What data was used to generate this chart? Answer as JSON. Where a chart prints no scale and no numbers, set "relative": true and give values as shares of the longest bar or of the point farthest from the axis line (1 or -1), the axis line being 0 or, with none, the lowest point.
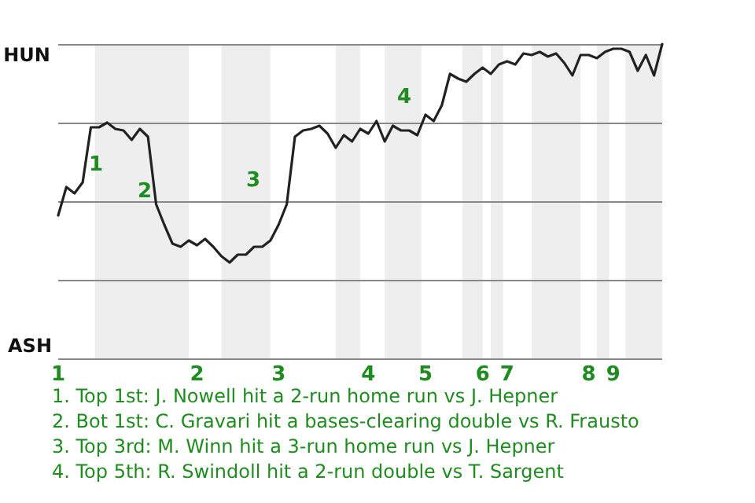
{
  "chart_data": {
    "type": "line",
    "relative": true,
    "categories": [
      "1",
      null,
      null,
      null,
      null,
      null,
      null,
      null,
      null,
      null,
      null,
      null,
      null,
      null,
      null,
      null,
      null,
      "2",
      null,
      null,
      null,
      null,
      null,
      null,
      null,
      null,
      null,
      "3",
      null,
      null,
      null,
      null,
      null,
      null,
      null,
      null,
      null,
      null,
      "4",
      null,
      null,
      null,
      null,
      null,
      null,
      "5",
      null,
      null,
      null,
      null,
      null,
      null,
      "6",
      null,
      null,
      "7",
      null,
      null,
      null,
      null,
      null,
      null,
      null,
      null,
      null,
      "8",
      null,
      null,
      "9",
      null,
      null,
      null,
      null,
      null,
      null
    ],
    "series": [
      {
        "color": "#222222",
        "values": [
          0.455,
          0.545,
          0.525,
          0.56,
          0.735,
          0.735,
          0.75,
          0.73,
          0.725,
          0.695,
          0.73,
          0.705,
          0.49,
          0.425,
          0.365,
          0.355,
          0.375,
          0.36,
          0.38,
          0.355,
          0.325,
          0.305,
          0.33,
          0.33,
          0.355,
          0.355,
          0.375,
          0.425,
          0.49,
          0.705,
          0.725,
          0.73,
          0.74,
          0.715,
          0.67,
          0.71,
          0.69,
          0.73,
          0.715,
          0.755,
          0.69,
          0.74,
          0.725,
          0.725,
          0.71,
          0.775,
          0.755,
          0.805,
          0.905,
          0.89,
          0.88,
          0.905,
          0.925,
          0.905,
          0.935,
          0.945,
          0.935,
          0.97,
          0.965,
          0.975,
          0.96,
          0.97,
          0.94,
          0.9,
          0.965,
          0.965,
          0.955,
          0.975,
          0.985,
          0.985,
          0.975,
          0.915,
          0.965,
          0.9,
          1
        ]
      }
    ],
    "grid": "y",
    "marker": "none",
    "line_style": "solid",
    "annotations": [
      "HUN",
      "ASH",
      "1",
      "2",
      "3",
      "4",
      "1. Top 1st: J. Nowell hit a 2-run home run vs J. Hepner",
      "2. Bot 1st: C. Gravari hit a bases-clearing double vs R. Frausto",
      "3. Top 3rd: M. Winn hit a 3-run home run vs J. Hepner",
      "4. Top 5th: R. Swindoll hit a 2-run double vs T. Sargent"
    ]
  }
}
